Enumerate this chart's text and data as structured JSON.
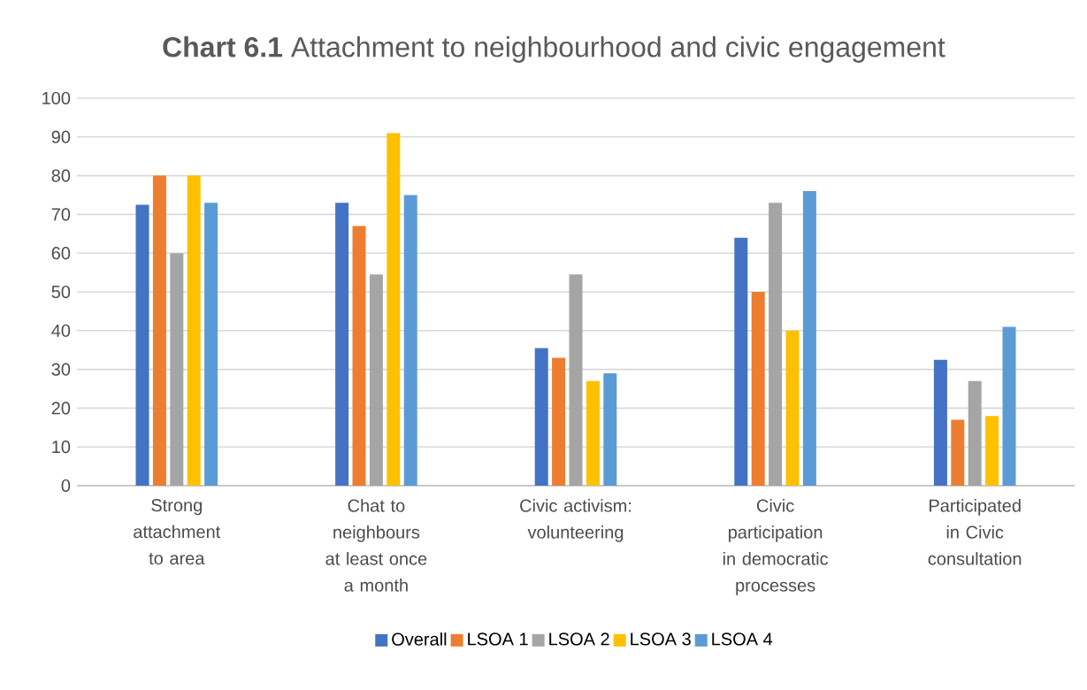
{
  "chart_data": {
    "type": "bar",
    "title": "**Chart 6.1**  Attachment to neighbourhood and civic engagement",
    "categories": [
      "Strong attachment to area",
      "Chat to neighbours at least once a month",
      "Civic activism: volunteering",
      "Civic participation in democratic processes",
      "Participated in Civic consultation"
    ],
    "series": [
      {
        "name": "Overall",
        "color": "#4472c4",
        "values": [
          72.5,
          73,
          35.5,
          64,
          32.5
        ]
      },
      {
        "name": "LSOA 1",
        "color": "#ed7d31",
        "values": [
          80,
          67,
          33,
          50,
          17
        ]
      },
      {
        "name": "LSOA 2",
        "color": "#a5a5a5",
        "values": [
          60,
          54.5,
          54.5,
          73,
          27
        ]
      },
      {
        "name": "LSOA 3",
        "color": "#ffc000",
        "values": [
          80,
          91,
          27,
          40,
          18
        ]
      },
      {
        "name": "LSOA 4",
        "color": "#5b9bd5",
        "values": [
          73,
          75,
          29,
          76,
          41
        ]
      }
    ],
    "ylim": [
      0,
      100
    ],
    "yticks": [
      0,
      10,
      20,
      30,
      40,
      50,
      60,
      70,
      80,
      90,
      100
    ],
    "grid": "y",
    "legend": "bottom"
  }
}
